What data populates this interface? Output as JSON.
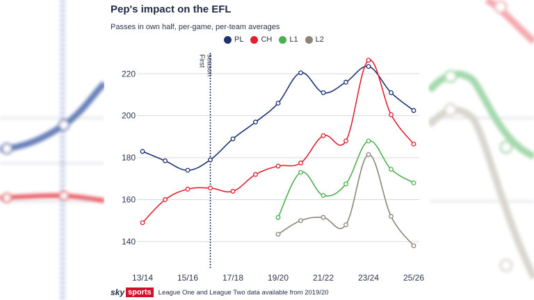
{
  "title": "Pep's impact on the EFL",
  "subtitle": "Passes in own half, per-game, per-team averages",
  "annotation": "First season",
  "footnote": "League One and League Two data available from 2019/20",
  "logo": {
    "sky": "sky",
    "sports": "sports"
  },
  "colors": {
    "PL": "#1c3272",
    "CH": "#e0202e",
    "L1": "#4caf50",
    "L2": "#8c8577"
  },
  "chart_data": {
    "type": "line",
    "title": "Pep's impact on the EFL",
    "subtitle": "Passes in own half, per-game, per-team averages",
    "xlabel": "",
    "ylabel": "",
    "x": [
      "13/14",
      "14/15",
      "15/16",
      "16/17",
      "17/18",
      "18/19",
      "19/20",
      "20/21",
      "21/22",
      "22/23",
      "23/24",
      "24/25",
      "25/26"
    ],
    "x_tick_labels": [
      "13/14",
      "15/16",
      "17/18",
      "19/20",
      "21/22",
      "23/24",
      "25/26"
    ],
    "y_ticks": [
      140,
      160,
      180,
      200,
      220
    ],
    "ylim": [
      133,
      234
    ],
    "grid": "horizontal",
    "legend_position": "top",
    "annotation_x": "16/17",
    "series": [
      {
        "name": "PL",
        "values": [
          183,
          178.5,
          174,
          179,
          189,
          197,
          206,
          220.5,
          211,
          216,
          223.5,
          211,
          202.5
        ]
      },
      {
        "name": "CH",
        "values": [
          149,
          160,
          165,
          165.5,
          164,
          172,
          176,
          177.5,
          190.5,
          188,
          226.5,
          200.5,
          186.5
        ]
      },
      {
        "name": "L1",
        "values": [
          null,
          null,
          null,
          null,
          null,
          null,
          151.5,
          173,
          162,
          167.5,
          188,
          174.5,
          168
        ]
      },
      {
        "name": "L2",
        "values": [
          null,
          null,
          null,
          null,
          null,
          null,
          143.5,
          150,
          151.5,
          148,
          181.5,
          152,
          138
        ]
      }
    ]
  }
}
